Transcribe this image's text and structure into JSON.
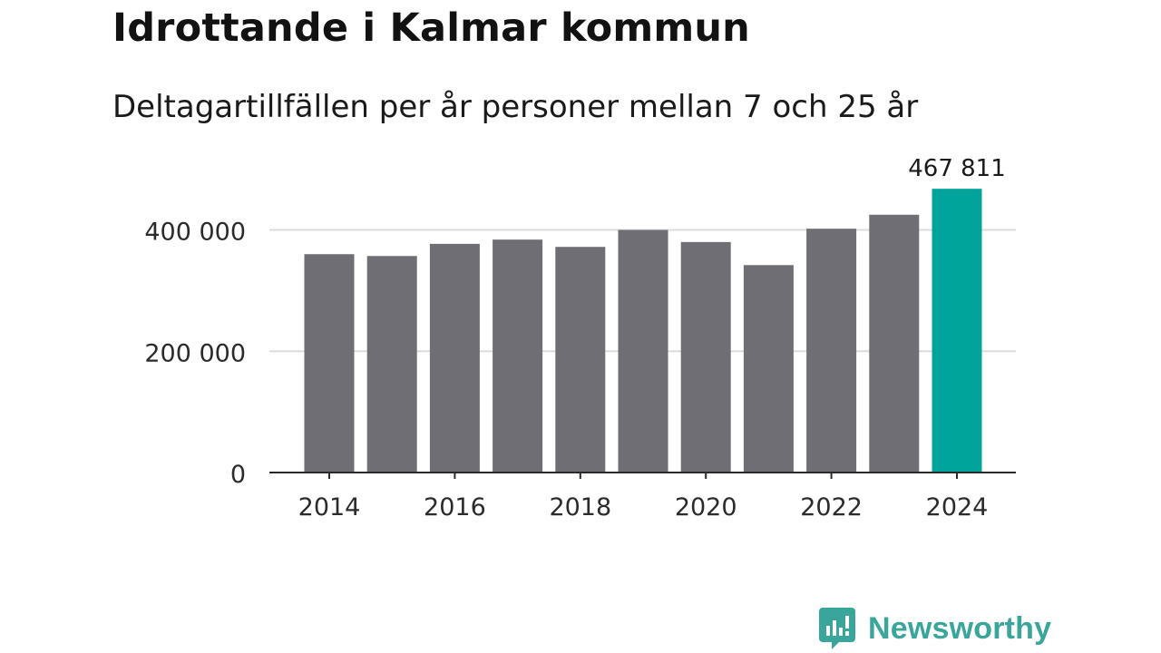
{
  "header": {
    "title": "Idrottande i Kalmar kommun",
    "subtitle": "Deltagartillfällen per år personer mellan 7 och 25 år"
  },
  "brand": {
    "name": "Newsworthy",
    "icon": "newsworthy-logo-icon"
  },
  "colors": {
    "bar": "#6f6e74",
    "highlight": "#00a49a",
    "grid": "#dcdcdc",
    "axis": "#2a2a2a",
    "text": "#2b2b2b"
  },
  "chart_data": {
    "type": "bar",
    "title": "Idrottande i Kalmar kommun",
    "subtitle": "Deltagartillfällen per år personer mellan 7 och 25 år",
    "categories": [
      "2014",
      "2015",
      "2016",
      "2017",
      "2018",
      "2019",
      "2020",
      "2021",
      "2022",
      "2023",
      "2024"
    ],
    "values": [
      360000,
      357000,
      377000,
      384000,
      372000,
      400000,
      380000,
      342000,
      402000,
      425000,
      467811
    ],
    "highlight_index": 10,
    "highlight_label": "467 811",
    "ylim": [
      0,
      480000
    ],
    "yticks": [
      0,
      200000,
      400000
    ],
    "ytick_labels": [
      "0",
      "200 000",
      "400 000"
    ],
    "xtick_labels": [
      "2014",
      "2016",
      "2018",
      "2020",
      "2022",
      "2024"
    ],
    "xlabel": "",
    "ylabel": "",
    "grid": true
  }
}
